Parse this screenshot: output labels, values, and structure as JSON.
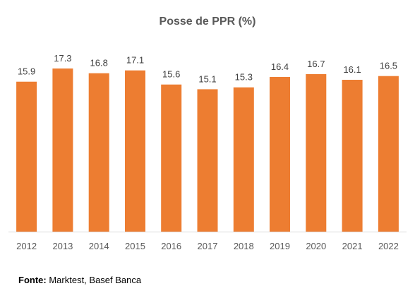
{
  "chart_data": {
    "type": "bar",
    "title": "Posse de PPR (%)",
    "categories": [
      "2012",
      "2013",
      "2014",
      "2015",
      "2016",
      "2017",
      "2018",
      "2019",
      "2020",
      "2021",
      "2022"
    ],
    "values": [
      15.9,
      17.3,
      16.8,
      17.1,
      15.6,
      15.1,
      15.3,
      16.4,
      16.7,
      16.1,
      16.5
    ],
    "data_labels": [
      "15.9",
      "17.3",
      "16.8",
      "17.1",
      "15.6",
      "15.1",
      "15.3",
      "16.4",
      "16.7",
      "16.1",
      "16.5"
    ],
    "xlabel": "",
    "ylabel": "",
    "ylim": [
      0,
      17.3
    ],
    "grid": false,
    "legend": "none",
    "bar_color": "#ED7D31",
    "baseline_color": "#D9D9D9"
  },
  "source": {
    "label": "Fonte:",
    "text": "Marktest, Basef Banca"
  }
}
